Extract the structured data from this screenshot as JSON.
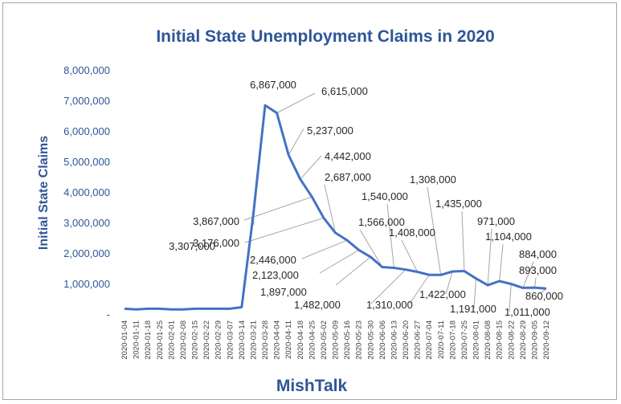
{
  "chart_data": {
    "type": "line",
    "title": "Initial State Unemployment Claims in 2020",
    "ylabel": "Initial  State Claims",
    "xlabel": "MishTalk",
    "ylim": [
      0,
      8000000
    ],
    "y_ticks": [
      "-",
      "1,000,000",
      "2,000,000",
      "3,000,000",
      "4,000,000",
      "5,000,000",
      "6,000,000",
      "7,000,000",
      "8,000,000"
    ],
    "x_ticks": [
      "2020-01-04",
      "2020-01-11",
      "2020-01-18",
      "2020-01-25",
      "2020-02-01",
      "2020-02-08",
      "2020-02-15",
      "2020-02-22",
      "2020-02-29",
      "2020-03-07",
      "2020-03-14",
      "2020-03-21",
      "2020-03-28",
      "2020-04-04",
      "2020-04-11",
      "2020-04-18",
      "2020-04-25",
      "2020-05-02",
      "2020-05-09",
      "2020-05-16",
      "2020-05-23",
      "2020-05-30",
      "2020-06-06",
      "2020-06-13",
      "2020-06-20",
      "2020-06-27",
      "2020-07-04",
      "2020-07-11",
      "2020-07-18",
      "2020-07-25",
      "2020-08-01",
      "2020-08-08",
      "2020-08-15",
      "2020-08-22",
      "2020-08-29",
      "2020-09-05",
      "2020-09-12"
    ],
    "series": [
      {
        "color": "#4472c4",
        "x": [
          "2020-01-04",
          "2020-01-11",
          "2020-01-18",
          "2020-01-25",
          "2020-02-01",
          "2020-02-08",
          "2020-02-15",
          "2020-02-22",
          "2020-02-29",
          "2020-03-07",
          "2020-03-14",
          "2020-03-21",
          "2020-03-28",
          "2020-04-04",
          "2020-04-11",
          "2020-04-18",
          "2020-04-25",
          "2020-05-02",
          "2020-05-09",
          "2020-05-16",
          "2020-05-23",
          "2020-05-30",
          "2020-06-06",
          "2020-06-13",
          "2020-06-20",
          "2020-06-27",
          "2020-07-04",
          "2020-07-11",
          "2020-07-18",
          "2020-07-25",
          "2020-08-01",
          "2020-08-08",
          "2020-08-15",
          "2020-08-22",
          "2020-08-29",
          "2020-09-05",
          "2020-09-12"
        ],
        "values": [
          200000,
          180000,
          200000,
          200000,
          180000,
          180000,
          200000,
          200000,
          200000,
          200000,
          250000,
          3307000,
          6867000,
          6615000,
          5237000,
          4442000,
          3867000,
          3176000,
          2687000,
          2446000,
          2123000,
          1897000,
          1566000,
          1540000,
          1482000,
          1408000,
          1310000,
          1308000,
          1422000,
          1435000,
          1191000,
          971000,
          1104000,
          1011000,
          884000,
          893000,
          860000
        ]
      }
    ],
    "data_labels": [
      {
        "index": 11,
        "text": "3,307,000"
      },
      {
        "index": 12,
        "text": "6,867,000"
      },
      {
        "index": 13,
        "text": "6,615,000"
      },
      {
        "index": 14,
        "text": "5,237,000"
      },
      {
        "index": 15,
        "text": "4,442,000"
      },
      {
        "index": 16,
        "text": "3,867,000"
      },
      {
        "index": 17,
        "text": "3,176,000"
      },
      {
        "index": 18,
        "text": "2,687,000"
      },
      {
        "index": 19,
        "text": "2,446,000"
      },
      {
        "index": 20,
        "text": "2,123,000"
      },
      {
        "index": 21,
        "text": "1,897,000"
      },
      {
        "index": 22,
        "text": "1,566,000"
      },
      {
        "index": 23,
        "text": "1,540,000"
      },
      {
        "index": 24,
        "text": "1,482,000"
      },
      {
        "index": 25,
        "text": "1,408,000"
      },
      {
        "index": 26,
        "text": "1,310,000"
      },
      {
        "index": 27,
        "text": "1,308,000"
      },
      {
        "index": 28,
        "text": "1,422,000"
      },
      {
        "index": 29,
        "text": "1,435,000"
      },
      {
        "index": 30,
        "text": "1,191,000"
      },
      {
        "index": 31,
        "text": "971,000"
      },
      {
        "index": 32,
        "text": "1,104,000"
      },
      {
        "index": 33,
        "text": "1,011,000"
      },
      {
        "index": 34,
        "text": "884,000"
      },
      {
        "index": 35,
        "text": "893,000"
      },
      {
        "index": 36,
        "text": "860,000"
      }
    ],
    "grid": false,
    "legend": "none"
  }
}
